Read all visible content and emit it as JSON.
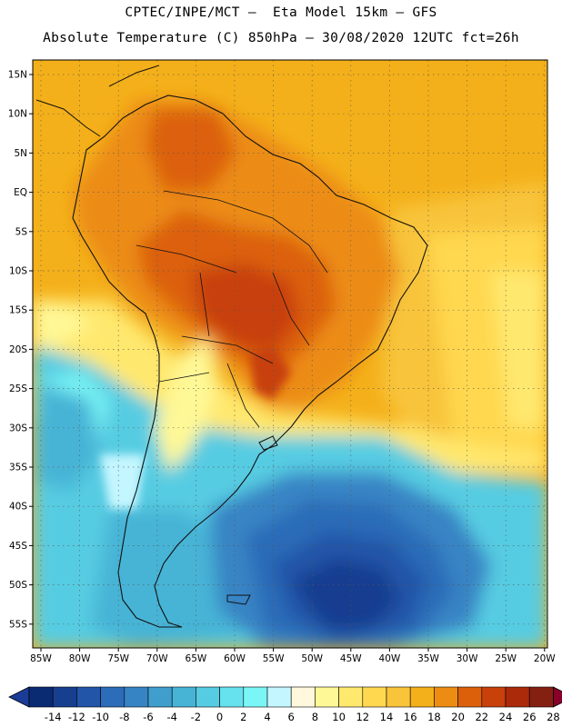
{
  "title_line1": "CPTEC/INPE/MCT –  Eta Model 15km – GFS",
  "title_line2": "Absolute Temperature (C) 850hPa – 30/08/2020 12UTC fct=26h",
  "lat_labels": [
    "15N",
    "10N",
    "5N",
    "EQ",
    "5S",
    "10S",
    "15S",
    "20S",
    "25S",
    "30S",
    "35S",
    "40S",
    "45S",
    "50S",
    "55S"
  ],
  "lon_labels": [
    "85W",
    "80W",
    "75W",
    "70W",
    "65W",
    "60W",
    "55W",
    "50W",
    "45W",
    "40W",
    "35W",
    "30W",
    "25W",
    "20W"
  ],
  "colorbar": {
    "labels": [
      "-14",
      "-12",
      "-10",
      "-8",
      "-6",
      "-4",
      "-2",
      "0",
      "2",
      "4",
      "6",
      "8",
      "10",
      "12",
      "14",
      "16",
      "18",
      "20",
      "22",
      "24",
      "26",
      "28"
    ],
    "colors": [
      "#0a2a72",
      "#183e90",
      "#2254a8",
      "#2c6cb8",
      "#3784c4",
      "#3f9ecc",
      "#47b4d6",
      "#56cce2",
      "#66e2ee",
      "#7af6f6",
      "#c4f6ff",
      "#fff8dc",
      "#fff896",
      "#ffe86e",
      "#ffd850",
      "#f8c43a",
      "#f4b01a",
      "#ec8c12",
      "#dc600a",
      "#c8400a",
      "#aa2a0a",
      "#842012"
    ],
    "under_color": "#1a3c96",
    "over_color": "#88002a"
  }
}
